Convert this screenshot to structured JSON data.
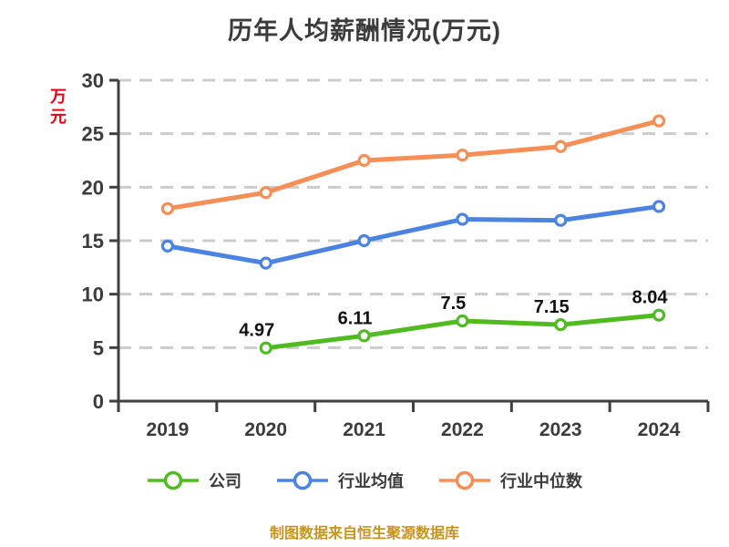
{
  "title": "历年人均薪酬情况(万元)",
  "y_axis_unit": "万元",
  "footer": "制图数据来自恒生聚源数据库",
  "colors": {
    "background": "#ffffff",
    "title": "#3b3b3b",
    "axis": "#404040",
    "tick_label": "#3b3b3b",
    "gridline": "#cccccc",
    "unit_label": "#e60014",
    "point_label": "#111111",
    "footer": "#c7941f",
    "marker_fill": "#ffffff"
  },
  "legend": {
    "items": [
      {
        "label": "公司",
        "color": "#50bb20"
      },
      {
        "label": "行业均值",
        "color": "#4b83e3"
      },
      {
        "label": "行业中位数",
        "color": "#f78e56"
      }
    ]
  },
  "chart_data": {
    "type": "line",
    "title": "历年人均薪酬情况(万元)",
    "categories": [
      "2019",
      "2020",
      "2021",
      "2022",
      "2023",
      "2024"
    ],
    "series": [
      {
        "name": "公司",
        "slug": "company",
        "color": "#50bb20",
        "values": [
          null,
          4.97,
          6.11,
          7.5,
          7.15,
          8.04
        ],
        "show_labels": true
      },
      {
        "name": "行业均值",
        "slug": "industry-average",
        "color": "#4b83e3",
        "values": [
          14.5,
          12.9,
          15.0,
          17.0,
          16.9,
          18.2
        ],
        "show_labels": false
      },
      {
        "name": "行业中位数",
        "slug": "industry-median",
        "color": "#f78e56",
        "values": [
          18.0,
          19.5,
          22.5,
          23.0,
          23.8,
          26.2
        ],
        "show_labels": false
      }
    ],
    "ylim": [
      0,
      30
    ],
    "y_ticks": [
      0,
      5,
      10,
      15,
      20,
      25,
      30
    ],
    "grid": "horizontal dashed",
    "legend_position": "bottom",
    "ylabel": "万元"
  }
}
